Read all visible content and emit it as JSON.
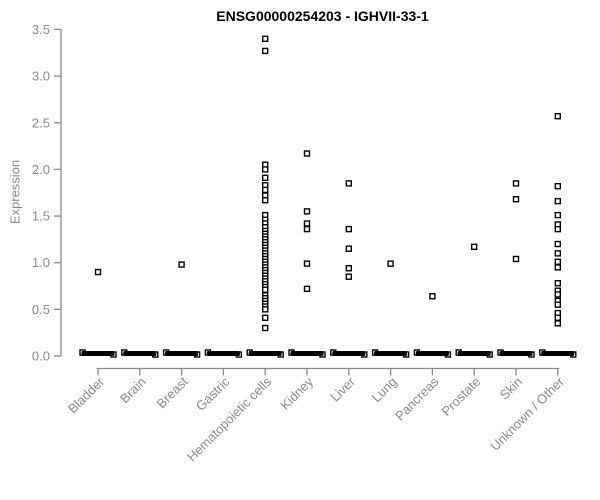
{
  "chart_data": {
    "type": "scatter",
    "title": "ENSG00000254203 - IGHVII-33-1",
    "xlabel": "",
    "ylabel": "Expression",
    "ylim": [
      0.0,
      3.5
    ],
    "ytick_labels": [
      "0.0",
      "0.5",
      "1.0",
      "1.5",
      "2.0",
      "2.5",
      "3.0",
      "3.5"
    ],
    "ytick_values": [
      0.0,
      0.5,
      1.0,
      1.5,
      2.0,
      2.5,
      3.0,
      3.5
    ],
    "grid": "off",
    "legend": "none",
    "marker": "open-square",
    "zero_dash_note": "every category has a dense row of overlapping points at expression 0 forming a thick black dash",
    "categories": [
      "Bladder",
      "Brain",
      "Breast",
      "Gastric",
      "Hematopoietic cells",
      "Kidney",
      "Liver",
      "Lung",
      "Pancreas",
      "Prostate",
      "Skin",
      "Unknown / Other"
    ],
    "series": [
      {
        "name": "expression-points",
        "values_by_category": [
          [
            0.9
          ],
          [],
          [
            0.98
          ],
          [],
          [
            3.4,
            3.27,
            2.05,
            2.0,
            1.91,
            1.83,
            1.78,
            1.72,
            1.67,
            1.51,
            1.46,
            1.42,
            1.38,
            1.34,
            1.31,
            1.28,
            1.25,
            1.22,
            1.19,
            1.16,
            1.13,
            1.1,
            1.07,
            1.04,
            1.01,
            0.98,
            0.95,
            0.92,
            0.89,
            0.86,
            0.83,
            0.8,
            0.77,
            0.74,
            0.71,
            0.65,
            0.62,
            0.59,
            0.56,
            0.53,
            0.5,
            0.41,
            0.3
          ],
          [
            2.17,
            1.55,
            1.42,
            1.36,
            0.99,
            0.72
          ],
          [
            1.85,
            1.36,
            1.15,
            0.94,
            0.85
          ],
          [
            0.99
          ],
          [
            0.64
          ],
          [
            1.17
          ],
          [
            1.85,
            1.68,
            1.04
          ],
          [
            2.57,
            1.82,
            1.66,
            1.51,
            1.41,
            1.36,
            1.2,
            1.1,
            1.01,
            0.95,
            0.78,
            0.7,
            0.66,
            0.59,
            0.55,
            0.46,
            0.41,
            0.35
          ]
        ],
        "zeros_dash_by_category": [
          true,
          true,
          true,
          true,
          true,
          true,
          true,
          true,
          true,
          true,
          true,
          true
        ]
      }
    ],
    "colors": {
      "point_outline": "#000000",
      "point_fill": "#ffffff",
      "axis": "#8a8a8a",
      "tick_label": "#8a8a8a",
      "title_color": "#000000"
    }
  }
}
